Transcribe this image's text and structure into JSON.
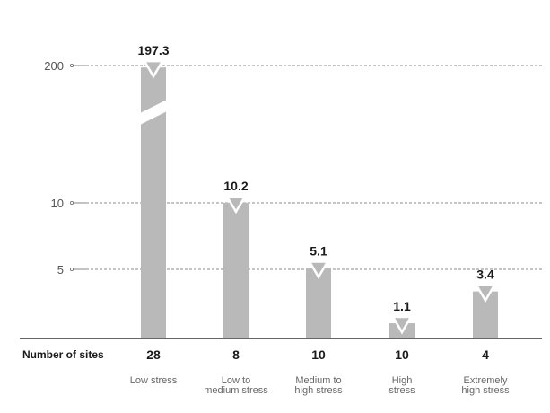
{
  "chart_data": {
    "type": "bar",
    "title": "",
    "xlabel": "",
    "ylabel": "",
    "broken_axis": true,
    "grid": "dashed reference lines at tick values",
    "categories": [
      [
        "Low stress"
      ],
      [
        "Low to",
        "medium stress"
      ],
      [
        "Medium to",
        "high stress"
      ],
      [
        "High",
        "stress"
      ],
      [
        "Extremely",
        "high stress"
      ]
    ],
    "values": [
      197.3,
      10.2,
      5.1,
      1.1,
      3.4
    ],
    "value_labels": [
      "197.3",
      "10.2",
      "5.1",
      "1.1",
      "3.4"
    ],
    "yticks": [
      {
        "value": 5,
        "label": "5"
      },
      {
        "value": 10,
        "label": "10"
      },
      {
        "value": 200,
        "label": "200"
      }
    ],
    "row_label": "Number of sites",
    "site_counts": [
      "28",
      "8",
      "10",
      "10",
      "4"
    ],
    "colors": {
      "bar": "#b9b9b9",
      "text": "#1a1a1a",
      "grid": "#666666",
      "marker": "#b9b9b9"
    }
  }
}
